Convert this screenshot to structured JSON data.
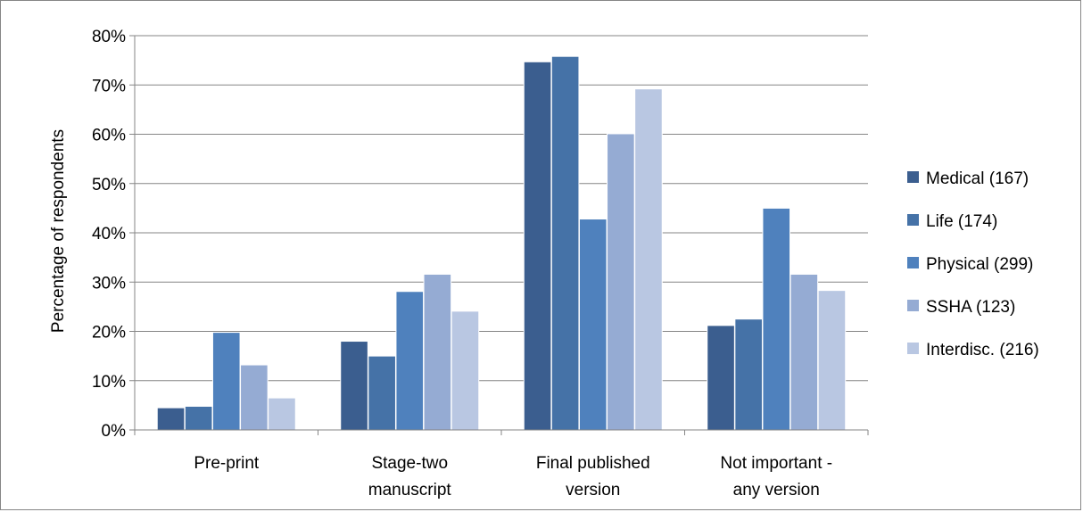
{
  "chart_data": {
    "type": "bar",
    "title": "",
    "xlabel": "",
    "ylabel": "Percentage of respondents",
    "ylim": [
      0,
      80
    ],
    "yticks": [
      "0%",
      "10%",
      "20%",
      "30%",
      "40%",
      "50%",
      "60%",
      "70%",
      "80%"
    ],
    "grid": true,
    "legend_position": "right",
    "categories": [
      [
        "Pre-print"
      ],
      [
        "Stage-two",
        "manuscript"
      ],
      [
        "Final published",
        "version"
      ],
      [
        "Not important -",
        "any version"
      ]
    ],
    "series": [
      {
        "name": "Medical  (167)",
        "color": "#3b5e8f",
        "values": [
          4.5,
          18,
          74.7,
          21.2
        ]
      },
      {
        "name": "Life  (174)",
        "color": "#4572a7",
        "values": [
          4.8,
          15,
          75.8,
          22.5
        ]
      },
      {
        "name": "Physical (299)",
        "color": "#4f81bd",
        "values": [
          19.8,
          28.1,
          42.8,
          45
        ]
      },
      {
        "name": "SSHA (123)",
        "color": "#95abd3",
        "values": [
          13.2,
          31.6,
          60.1,
          31.6
        ]
      },
      {
        "name": "Interdisc. (216)",
        "color": "#b9c7e2",
        "values": [
          6.5,
          24.1,
          69.2,
          28.3
        ]
      }
    ]
  }
}
